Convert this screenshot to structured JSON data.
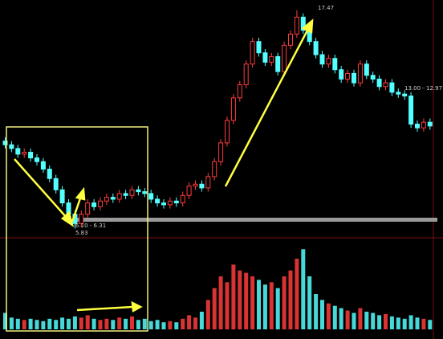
{
  "chart_data": {
    "type": "candlestick",
    "up_color": "#ff3c3c",
    "down_color": "#54ffff",
    "ylim": [
      5.6,
      17.8
    ],
    "open": [
      10.5,
      10.3,
      10.1,
      9.8,
      9.9,
      9.6,
      9.4,
      9.0,
      8.5,
      7.9,
      7.2,
      6.6,
      6.1,
      6.6,
      7.2,
      7.0,
      7.3,
      7.5,
      7.4,
      7.7,
      7.6,
      7.9,
      7.8,
      7.7,
      7.4,
      7.2,
      7.1,
      7.3,
      7.2,
      7.6,
      8.1,
      8.2,
      8.0,
      8.6,
      9.4,
      10.4,
      11.6,
      12.8,
      13.5,
      14.6,
      15.8,
      15.2,
      14.7,
      15.0,
      14.2,
      15.6,
      16.2,
      17.1,
      16.4,
      15.8,
      15.1,
      14.6,
      14.9,
      14.3,
      13.8,
      14.1,
      13.6,
      14.6,
      14.0,
      13.8,
      13.4,
      13.6,
      13.1,
      13.0,
      12.9,
      11.4,
      11.2,
      11.5
    ],
    "high": [
      10.7,
      10.5,
      10.3,
      10.1,
      10.1,
      9.8,
      9.6,
      9.2,
      8.7,
      8.1,
      7.4,
      6.8,
      6.8,
      7.4,
      7.4,
      7.5,
      7.7,
      7.7,
      7.9,
      7.9,
      8.1,
      8.1,
      8.0,
      7.9,
      7.6,
      7.4,
      7.5,
      7.5,
      7.8,
      8.3,
      8.4,
      8.4,
      8.8,
      9.6,
      10.6,
      11.8,
      13.0,
      13.7,
      14.8,
      16.0,
      16.0,
      15.4,
      15.2,
      15.2,
      15.8,
      16.4,
      17.47,
      17.3,
      16.6,
      16.0,
      15.3,
      15.1,
      15.1,
      14.5,
      14.3,
      14.3,
      14.8,
      14.8,
      14.2,
      14.0,
      13.8,
      13.8,
      13.3,
      13.2,
      13.1,
      11.6,
      11.7,
      11.7
    ],
    "low": [
      10.1,
      9.9,
      9.6,
      9.6,
      9.4,
      9.2,
      8.8,
      8.3,
      7.7,
      7.0,
      6.4,
      5.83,
      5.9,
      6.4,
      6.8,
      6.8,
      7.1,
      7.2,
      7.2,
      7.4,
      7.4,
      7.6,
      7.5,
      7.2,
      7.0,
      6.9,
      6.9,
      7.0,
      7.0,
      7.4,
      7.9,
      7.8,
      7.8,
      8.4,
      9.2,
      10.2,
      11.4,
      12.6,
      13.3,
      14.4,
      15.0,
      14.5,
      14.5,
      14.0,
      14.0,
      15.4,
      16.0,
      16.2,
      15.6,
      14.9,
      14.4,
      14.4,
      14.1,
      13.6,
      13.6,
      13.4,
      13.4,
      13.8,
      13.6,
      13.2,
      13.2,
      12.9,
      12.8,
      12.7,
      11.2,
      11.0,
      11.0,
      11.1
    ],
    "close": [
      10.3,
      10.1,
      9.8,
      9.9,
      9.6,
      9.4,
      9.0,
      8.5,
      7.9,
      7.2,
      6.6,
      6.1,
      6.6,
      7.2,
      7.0,
      7.3,
      7.5,
      7.4,
      7.7,
      7.6,
      7.9,
      7.8,
      7.7,
      7.4,
      7.2,
      7.1,
      7.3,
      7.2,
      7.6,
      8.1,
      8.2,
      8.0,
      8.6,
      9.4,
      10.4,
      11.6,
      12.8,
      13.5,
      14.6,
      15.8,
      15.2,
      14.7,
      15.0,
      14.2,
      15.6,
      16.2,
      17.1,
      16.4,
      15.8,
      15.1,
      14.6,
      14.9,
      14.3,
      13.8,
      14.1,
      13.6,
      14.6,
      14.0,
      13.8,
      13.4,
      13.6,
      13.1,
      13.0,
      12.9,
      11.4,
      11.2,
      11.5,
      11.3
    ],
    "volume": [
      14,
      10,
      9,
      8,
      9,
      8,
      7,
      9,
      8,
      10,
      9,
      11,
      10,
      12,
      9,
      8,
      9,
      8,
      10,
      9,
      11,
      8,
      9,
      7,
      8,
      6,
      7,
      6,
      9,
      12,
      10,
      15,
      25,
      35,
      45,
      40,
      55,
      50,
      48,
      45,
      42,
      38,
      40,
      35,
      45,
      50,
      60,
      68,
      45,
      30,
      25,
      22,
      20,
      18,
      16,
      14,
      18,
      15,
      14,
      12,
      13,
      11,
      10,
      9,
      12,
      10,
      9,
      8
    ],
    "volume_ylim": [
      0,
      75
    ],
    "annotations": [
      "17.47",
      "13.00 - 12.97",
      "6.10 - 6.31",
      "5.83"
    ]
  }
}
